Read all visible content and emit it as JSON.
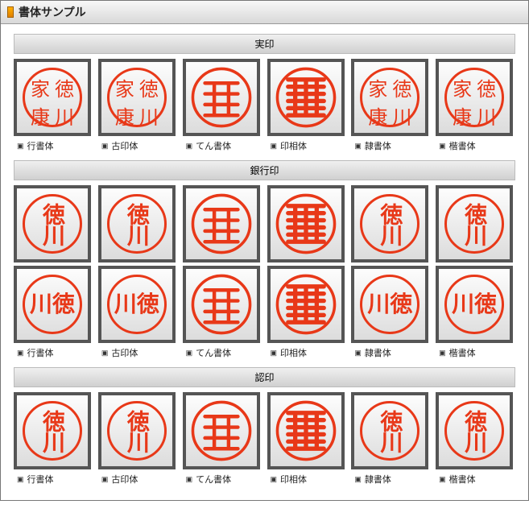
{
  "header": {
    "title": "書体サンプル"
  },
  "colors": {
    "stamp": "#e83818",
    "frame": "#555555",
    "section_bg_top": "#f0f0f0",
    "section_bg_bot": "#d0d0d0"
  },
  "font_labels": [
    "行書体",
    "古印体",
    "てん書体",
    "印相体",
    "隷書体",
    "楷書体"
  ],
  "sections": [
    {
      "title": "実印",
      "rows": 1,
      "text_full": [
        "徳",
        "川",
        "家",
        "康"
      ],
      "layout": "grid4"
    },
    {
      "title": "銀行印",
      "rows": 2,
      "row_texts": [
        [
          "徳",
          "川"
        ],
        [
          "川",
          "徳"
        ]
      ],
      "layouts": [
        "v2",
        "h2"
      ]
    },
    {
      "title": "認印",
      "rows": 1,
      "text": [
        "徳",
        "川"
      ],
      "layout": "v2"
    }
  ],
  "stylized_indices": [
    2,
    3
  ]
}
